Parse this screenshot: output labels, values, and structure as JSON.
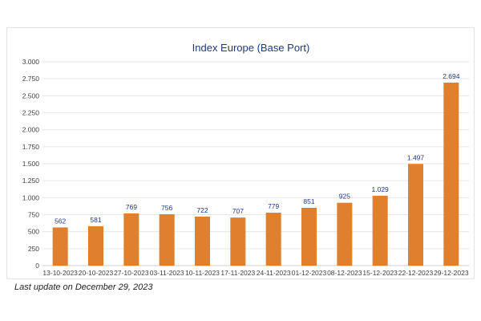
{
  "chart_data": {
    "type": "bar",
    "title": "Index Europe (Base Port)",
    "xlabel": "",
    "ylabel": "",
    "categories": [
      "13-10-2023",
      "20-10-2023",
      "27-10-2023",
      "03-11-2023",
      "10-11-2023",
      "17-11-2023",
      "24-11-2023",
      "01-12-2023",
      "08-12-2023",
      "15-12-2023",
      "22-12-2023",
      "29-12-2023"
    ],
    "values": [
      562,
      581,
      769,
      756,
      722,
      707,
      779,
      851,
      925,
      1029,
      1497,
      2694
    ],
    "value_labels": [
      "562",
      "581",
      "769",
      "756",
      "722",
      "707",
      "779",
      "851",
      "925",
      "1.029",
      "1.497",
      "2.694"
    ],
    "ylim": [
      0,
      3000
    ],
    "yticks": [
      0,
      250,
      500,
      750,
      1000,
      1250,
      1500,
      1750,
      2000,
      2250,
      2500,
      2750,
      3000
    ],
    "ytick_labels": [
      "0",
      "250",
      "500",
      "750",
      "1.000",
      "1.250",
      "1.500",
      "1.750",
      "2.000",
      "2.250",
      "2.500",
      "2.750",
      "3.000"
    ],
    "grid": true,
    "legend": "none",
    "bar_color": "#e07f2c",
    "gridline_color": "#e6e6e6",
    "title_color": "#1f3a78",
    "data_label_color": "#1f3a78"
  },
  "footnote": "Last update on December 29, 2023"
}
